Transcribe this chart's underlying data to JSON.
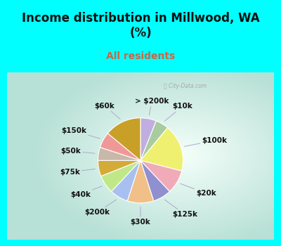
{
  "title": "Income distribution in Millwood, WA\n(%)",
  "subtitle": "All residents",
  "title_color": "#111111",
  "subtitle_color": "#cc6644",
  "fig_bg_color": "#00FFFF",
  "chart_bg_left": "#c8e8cc",
  "chart_bg_right": "#f5fff5",
  "watermark": "ⓘ City-Data.com",
  "labels": [
    "> $200k",
    "$10k",
    "$100k",
    "$20k",
    "$125k",
    "$30k",
    "$200k",
    "$40k",
    "$75k",
    "$50k",
    "$150k",
    "$60k"
  ],
  "values": [
    6,
    5,
    18,
    9,
    7,
    10,
    7,
    7,
    6,
    5,
    6,
    14
  ],
  "colors": [
    "#c0aee0",
    "#a8cca0",
    "#f0f070",
    "#f0aab8",
    "#9090d0",
    "#f0c088",
    "#a8c0f0",
    "#c0e888",
    "#d4aa38",
    "#c8b8a8",
    "#f09898",
    "#c8a028"
  ],
  "startangle": 90,
  "counterclock": false,
  "title_fontsize": 12,
  "subtitle_fontsize": 10,
  "label_fontsize": 7.5
}
